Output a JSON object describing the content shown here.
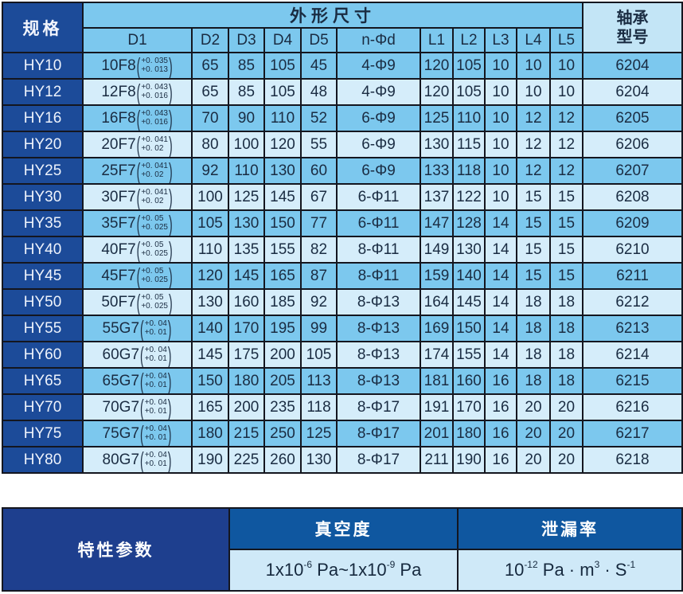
{
  "colors": {
    "header_navy": "#1c4b99",
    "row_medium_blue": "#7cc8ee",
    "row_light_blue": "#d5edfa",
    "bearing_header_bg": "#c3e5f6",
    "bottom_label_navy": "#1e3f8e",
    "bottom_header_blue": "#0f57a0",
    "bottom_value_bg": "#cfe9f8",
    "grid_border": "#14161f",
    "dark_text": "#1a2c42",
    "white_text": "#ffffff"
  },
  "main_table": {
    "spec_header": "规格",
    "dims_header": "外形尺寸",
    "bearing_header_line1": "轴承",
    "bearing_header_line2": "型号",
    "columns": [
      "D1",
      "D2",
      "D3",
      "D4",
      "D5",
      "n-Φd",
      "L1",
      "L2",
      "L3",
      "L4",
      "L5"
    ],
    "rows": [
      {
        "spec": "HY10",
        "d1": "10F8",
        "tol_upper": "+0. 035",
        "tol_lower": "+0. 013",
        "d2": "65",
        "d3": "85",
        "d4": "105",
        "d5": "45",
        "n_d": "4-Φ9",
        "l1": "120",
        "l2": "105",
        "l3": "10",
        "l4": "10",
        "l5": "10",
        "bearing": "6204"
      },
      {
        "spec": "HY12",
        "d1": "12F8",
        "tol_upper": "+0. 043",
        "tol_lower": "+0. 016",
        "d2": "65",
        "d3": "85",
        "d4": "105",
        "d5": "48",
        "n_d": "4-Φ9",
        "l1": "120",
        "l2": "105",
        "l3": "10",
        "l4": "10",
        "l5": "10",
        "bearing": "6204"
      },
      {
        "spec": "HY16",
        "d1": "16F8",
        "tol_upper": "+0. 043",
        "tol_lower": "+0. 016",
        "d2": "70",
        "d3": "90",
        "d4": "110",
        "d5": "52",
        "n_d": "6-Φ9",
        "l1": "125",
        "l2": "110",
        "l3": "10",
        "l4": "12",
        "l5": "12",
        "bearing": "6205"
      },
      {
        "spec": "HY20",
        "d1": "20F7",
        "tol_upper": "+0. 041",
        "tol_lower": "+0. 02",
        "d2": "80",
        "d3": "100",
        "d4": "120",
        "d5": "55",
        "n_d": "6-Φ9",
        "l1": "130",
        "l2": "115",
        "l3": "10",
        "l4": "12",
        "l5": "12",
        "bearing": "6206"
      },
      {
        "spec": "HY25",
        "d1": "25F7",
        "tol_upper": "+0. 041",
        "tol_lower": "+0. 02",
        "d2": "92",
        "d3": "110",
        "d4": "130",
        "d5": "60",
        "n_d": "6-Φ9",
        "l1": "133",
        "l2": "118",
        "l3": "10",
        "l4": "12",
        "l5": "12",
        "bearing": "6207"
      },
      {
        "spec": "HY30",
        "d1": "30F7",
        "tol_upper": "+0. 041",
        "tol_lower": "+0. 02",
        "d2": "100",
        "d3": "125",
        "d4": "145",
        "d5": "67",
        "n_d": "6-Φ11",
        "l1": "137",
        "l2": "122",
        "l3": "10",
        "l4": "15",
        "l5": "15",
        "bearing": "6208"
      },
      {
        "spec": "HY35",
        "d1": "35F7",
        "tol_upper": "+0. 05",
        "tol_lower": "+0. 025",
        "d2": "105",
        "d3": "130",
        "d4": "150",
        "d5": "77",
        "n_d": "6-Φ11",
        "l1": "147",
        "l2": "128",
        "l3": "14",
        "l4": "15",
        "l5": "15",
        "bearing": "6209"
      },
      {
        "spec": "HY40",
        "d1": "40F7",
        "tol_upper": "+0. 05",
        "tol_lower": "+0. 025",
        "d2": "110",
        "d3": "135",
        "d4": "155",
        "d5": "82",
        "n_d": "8-Φ11",
        "l1": "149",
        "l2": "130",
        "l3": "14",
        "l4": "15",
        "l5": "15",
        "bearing": "6210"
      },
      {
        "spec": "HY45",
        "d1": "45F7",
        "tol_upper": "+0. 05",
        "tol_lower": "+0. 025",
        "d2": "120",
        "d3": "145",
        "d4": "165",
        "d5": "87",
        "n_d": "8-Φ11",
        "l1": "159",
        "l2": "140",
        "l3": "14",
        "l4": "15",
        "l5": "15",
        "bearing": "6211"
      },
      {
        "spec": "HY50",
        "d1": "50F7",
        "tol_upper": "+0. 05",
        "tol_lower": "+0. 025",
        "d2": "130",
        "d3": "160",
        "d4": "185",
        "d5": "92",
        "n_d": "8-Φ13",
        "l1": "164",
        "l2": "145",
        "l3": "14",
        "l4": "18",
        "l5": "18",
        "bearing": "6212"
      },
      {
        "spec": "HY55",
        "d1": "55G7",
        "tol_upper": "+0. 04",
        "tol_lower": "+0. 01",
        "d2": "140",
        "d3": "170",
        "d4": "195",
        "d5": "99",
        "n_d": "8-Φ13",
        "l1": "169",
        "l2": "150",
        "l3": "14",
        "l4": "18",
        "l5": "18",
        "bearing": "6213"
      },
      {
        "spec": "HY60",
        "d1": "60G7",
        "tol_upper": "+0. 04",
        "tol_lower": "+0. 01",
        "d2": "145",
        "d3": "175",
        "d4": "200",
        "d5": "105",
        "n_d": "8-Φ13",
        "l1": "174",
        "l2": "155",
        "l3": "14",
        "l4": "18",
        "l5": "18",
        "bearing": "6214"
      },
      {
        "spec": "HY65",
        "d1": "65G7",
        "tol_upper": "+0. 04",
        "tol_lower": "+0. 01",
        "d2": "150",
        "d3": "180",
        "d4": "205",
        "d5": "113",
        "n_d": "8-Φ13",
        "l1": "181",
        "l2": "160",
        "l3": "16",
        "l4": "18",
        "l5": "18",
        "bearing": "6215"
      },
      {
        "spec": "HY70",
        "d1": "70G7",
        "tol_upper": "+0. 04",
        "tol_lower": "+0. 01",
        "d2": "165",
        "d3": "200",
        "d4": "235",
        "d5": "118",
        "n_d": "8-Φ17",
        "l1": "191",
        "l2": "170",
        "l3": "16",
        "l4": "20",
        "l5": "20",
        "bearing": "6216"
      },
      {
        "spec": "HY75",
        "d1": "75G7",
        "tol_upper": "+0. 04",
        "tol_lower": "+0. 01",
        "d2": "180",
        "d3": "215",
        "d4": "250",
        "d5": "125",
        "n_d": "8-Φ17",
        "l1": "201",
        "l2": "180",
        "l3": "16",
        "l4": "20",
        "l5": "20",
        "bearing": "6217"
      },
      {
        "spec": "HY80",
        "d1": "80G7",
        "tol_upper": "+0. 04",
        "tol_lower": "+0. 01",
        "d2": "190",
        "d3": "225",
        "d4": "260",
        "d5": "130",
        "n_d": "8-Φ17",
        "l1": "211",
        "l2": "190",
        "l3": "16",
        "l4": "20",
        "l5": "20",
        "bearing": "6218"
      }
    ]
  },
  "bottom_table": {
    "label": "特性参数",
    "vacuum_header": "真空度",
    "leak_header": "泄漏率",
    "vacuum_value": {
      "base1": "1x10",
      "exp1": "-6",
      "mid": " Pa~1x10",
      "exp2": "-9",
      "tail": " Pa"
    },
    "leak_value": {
      "base": "10",
      "exp": "-12",
      "m1": " Pa · m",
      "exp_m": "3",
      "m2": " · S",
      "exp_s": "-1"
    }
  }
}
